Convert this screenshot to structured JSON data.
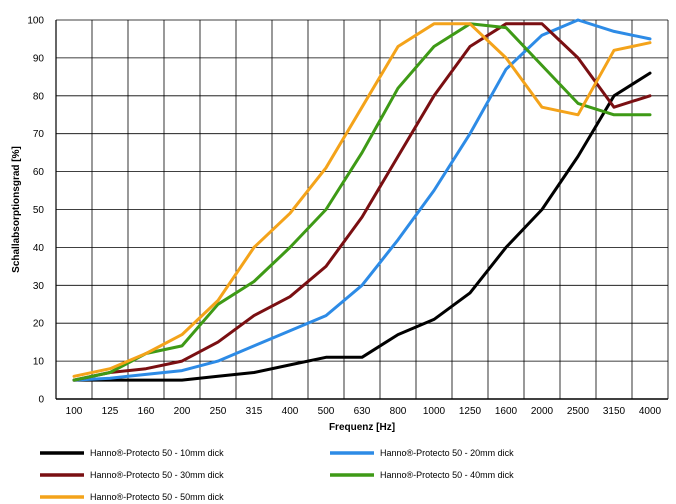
{
  "chart_data": {
    "type": "line",
    "xlabel": "Frequenz [Hz]",
    "ylabel": "Schallabsorptionsgrad  [%]",
    "ylim": [
      0,
      100
    ],
    "yticks": [
      0,
      10,
      20,
      30,
      40,
      50,
      60,
      70,
      80,
      90,
      100
    ],
    "categories": [
      "100",
      "125",
      "160",
      "200",
      "250",
      "315",
      "400",
      "500",
      "630",
      "800",
      "1000",
      "1250",
      "1600",
      "2000",
      "2500",
      "3150",
      "4000"
    ],
    "grid": true,
    "legend_position": "bottom",
    "series": [
      {
        "name": "Hanno®-Protecto 50 - 10mm dick",
        "color": "#000000",
        "values": [
          5,
          5,
          5,
          5,
          6,
          7,
          9,
          11,
          11,
          17,
          21,
          28,
          40,
          50,
          64,
          80,
          86
        ]
      },
      {
        "name": "Hanno®-Protecto 50 - 20mm dick",
        "color": "#2d8be6",
        "values": [
          5,
          5.5,
          6.5,
          7.5,
          10,
          14,
          18,
          22,
          30,
          42,
          55,
          70,
          87,
          96,
          100,
          97,
          95
        ]
      },
      {
        "name": "Hanno®-Protecto 50 - 30mm dick",
        "color": "#7a0f12",
        "values": [
          5,
          7,
          8,
          10,
          15,
          22,
          27,
          35,
          48,
          64,
          80,
          93,
          99,
          99,
          90,
          77,
          80
        ]
      },
      {
        "name": "Hanno®-Protecto 50 - 40mm dick",
        "color": "#3e9a16",
        "values": [
          5,
          7,
          12,
          14,
          25,
          31,
          40,
          50,
          65,
          82,
          93,
          99,
          98,
          88,
          78,
          75,
          75
        ]
      },
      {
        "name": "Hanno®-Protecto 50 - 50mm dick",
        "color": "#f4a31a",
        "values": [
          6,
          8,
          12,
          17,
          26,
          40,
          49,
          61,
          77,
          93,
          99,
          99,
          90,
          77,
          75,
          92,
          94
        ]
      }
    ]
  }
}
